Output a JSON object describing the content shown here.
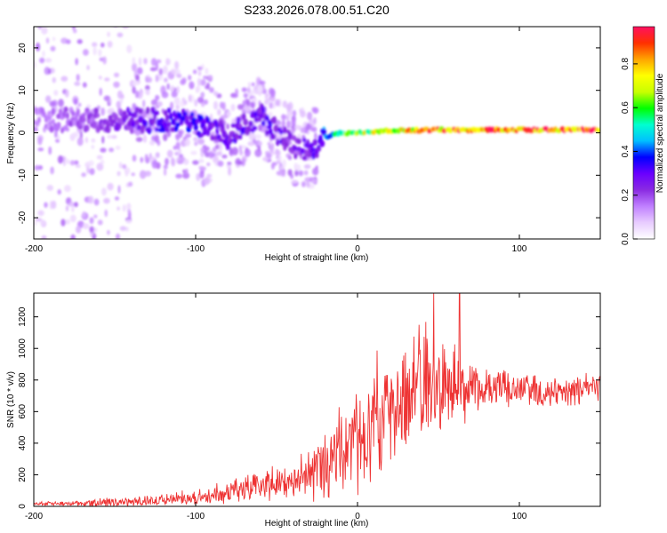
{
  "figure_title": "S233.2026.078.00.51.C20",
  "colors": {
    "snr_line": "#ee3333",
    "axis": "#000000",
    "colormap": [
      "#ffffff",
      "#e8ccff",
      "#c080ff",
      "#8a2be2",
      "#6a00ff",
      "#0000ff",
      "#00c0ff",
      "#00ffd0",
      "#00ff00",
      "#c8ff00",
      "#ffff00",
      "#ffa500",
      "#ff3000",
      "#ff1060"
    ]
  },
  "chart_data": [
    {
      "type": "heatmap",
      "title": "",
      "xlabel": "Height of straight line (km)",
      "ylabel": "Frequency (Hz)",
      "xlim": [
        -200,
        150
      ],
      "ylim": [
        -25,
        25
      ],
      "xticks": [
        -200,
        -100,
        0,
        100
      ],
      "yticks": [
        -20,
        -10,
        0,
        10,
        20
      ],
      "colorbar": {
        "label": "Normalized spectral amplitude",
        "range": [
          0.0,
          0.97
        ],
        "ticks": [
          "0.0",
          "0.2",
          "0.4",
          "0.6",
          "0.8"
        ],
        "tick_values": [
          0.0,
          0.2,
          0.4,
          0.6,
          0.8
        ]
      },
      "ridge": {
        "x": [
          -200,
          -170,
          -150,
          -130,
          -110,
          -100,
          -90,
          -80,
          -70,
          -60,
          -50,
          -40,
          -30,
          -25,
          -20,
          -10,
          0,
          20,
          50,
          100,
          150
        ],
        "freq": [
          3,
          3,
          3,
          3,
          3,
          2,
          1,
          -1,
          2,
          4,
          0,
          -3,
          -4,
          -3,
          -1,
          0,
          0,
          0.5,
          0.7,
          0.7,
          0.7
        ],
        "amp": [
          0.15,
          0.2,
          0.25,
          0.3,
          0.35,
          0.35,
          0.3,
          0.3,
          0.3,
          0.3,
          0.3,
          0.25,
          0.3,
          0.3,
          0.45,
          0.6,
          0.7,
          0.8,
          0.9,
          0.95,
          0.95
        ]
      }
    },
    {
      "type": "line",
      "title": "",
      "xlabel": "Height of straight line (km)",
      "ylabel": "SNR (10 * v/v)",
      "xlim": [
        -200,
        150
      ],
      "ylim": [
        0,
        1350
      ],
      "xticks": [
        -200,
        -100,
        0,
        100
      ],
      "yticks": [
        0,
        200,
        400,
        600,
        800,
        1000,
        1200
      ],
      "series": [
        {
          "name": "SNR",
          "envelope_x": [
            -200,
            -180,
            -160,
            -140,
            -120,
            -100,
            -80,
            -60,
            -40,
            -30,
            -20,
            -10,
            0,
            10,
            20,
            30,
            40,
            50,
            60,
            70,
            80,
            90,
            100,
            120,
            140,
            150
          ],
          "envelope_mid": [
            15,
            20,
            25,
            30,
            40,
            60,
            90,
            130,
            170,
            200,
            260,
            330,
            420,
            520,
            600,
            700,
            780,
            780,
            770,
            740,
            750,
            760,
            740,
            730,
            740,
            760
          ],
          "envelope_amp": [
            15,
            20,
            30,
            35,
            45,
            60,
            80,
            110,
            150,
            200,
            280,
            380,
            450,
            500,
            420,
            420,
            450,
            400,
            300,
            200,
            180,
            150,
            120,
            120,
            110,
            100
          ],
          "peaks": [
            {
              "x": 47,
              "y": 1350
            },
            {
              "x": 63,
              "y": 1350
            },
            {
              "x": 38,
              "y": 1150
            }
          ]
        }
      ]
    }
  ]
}
